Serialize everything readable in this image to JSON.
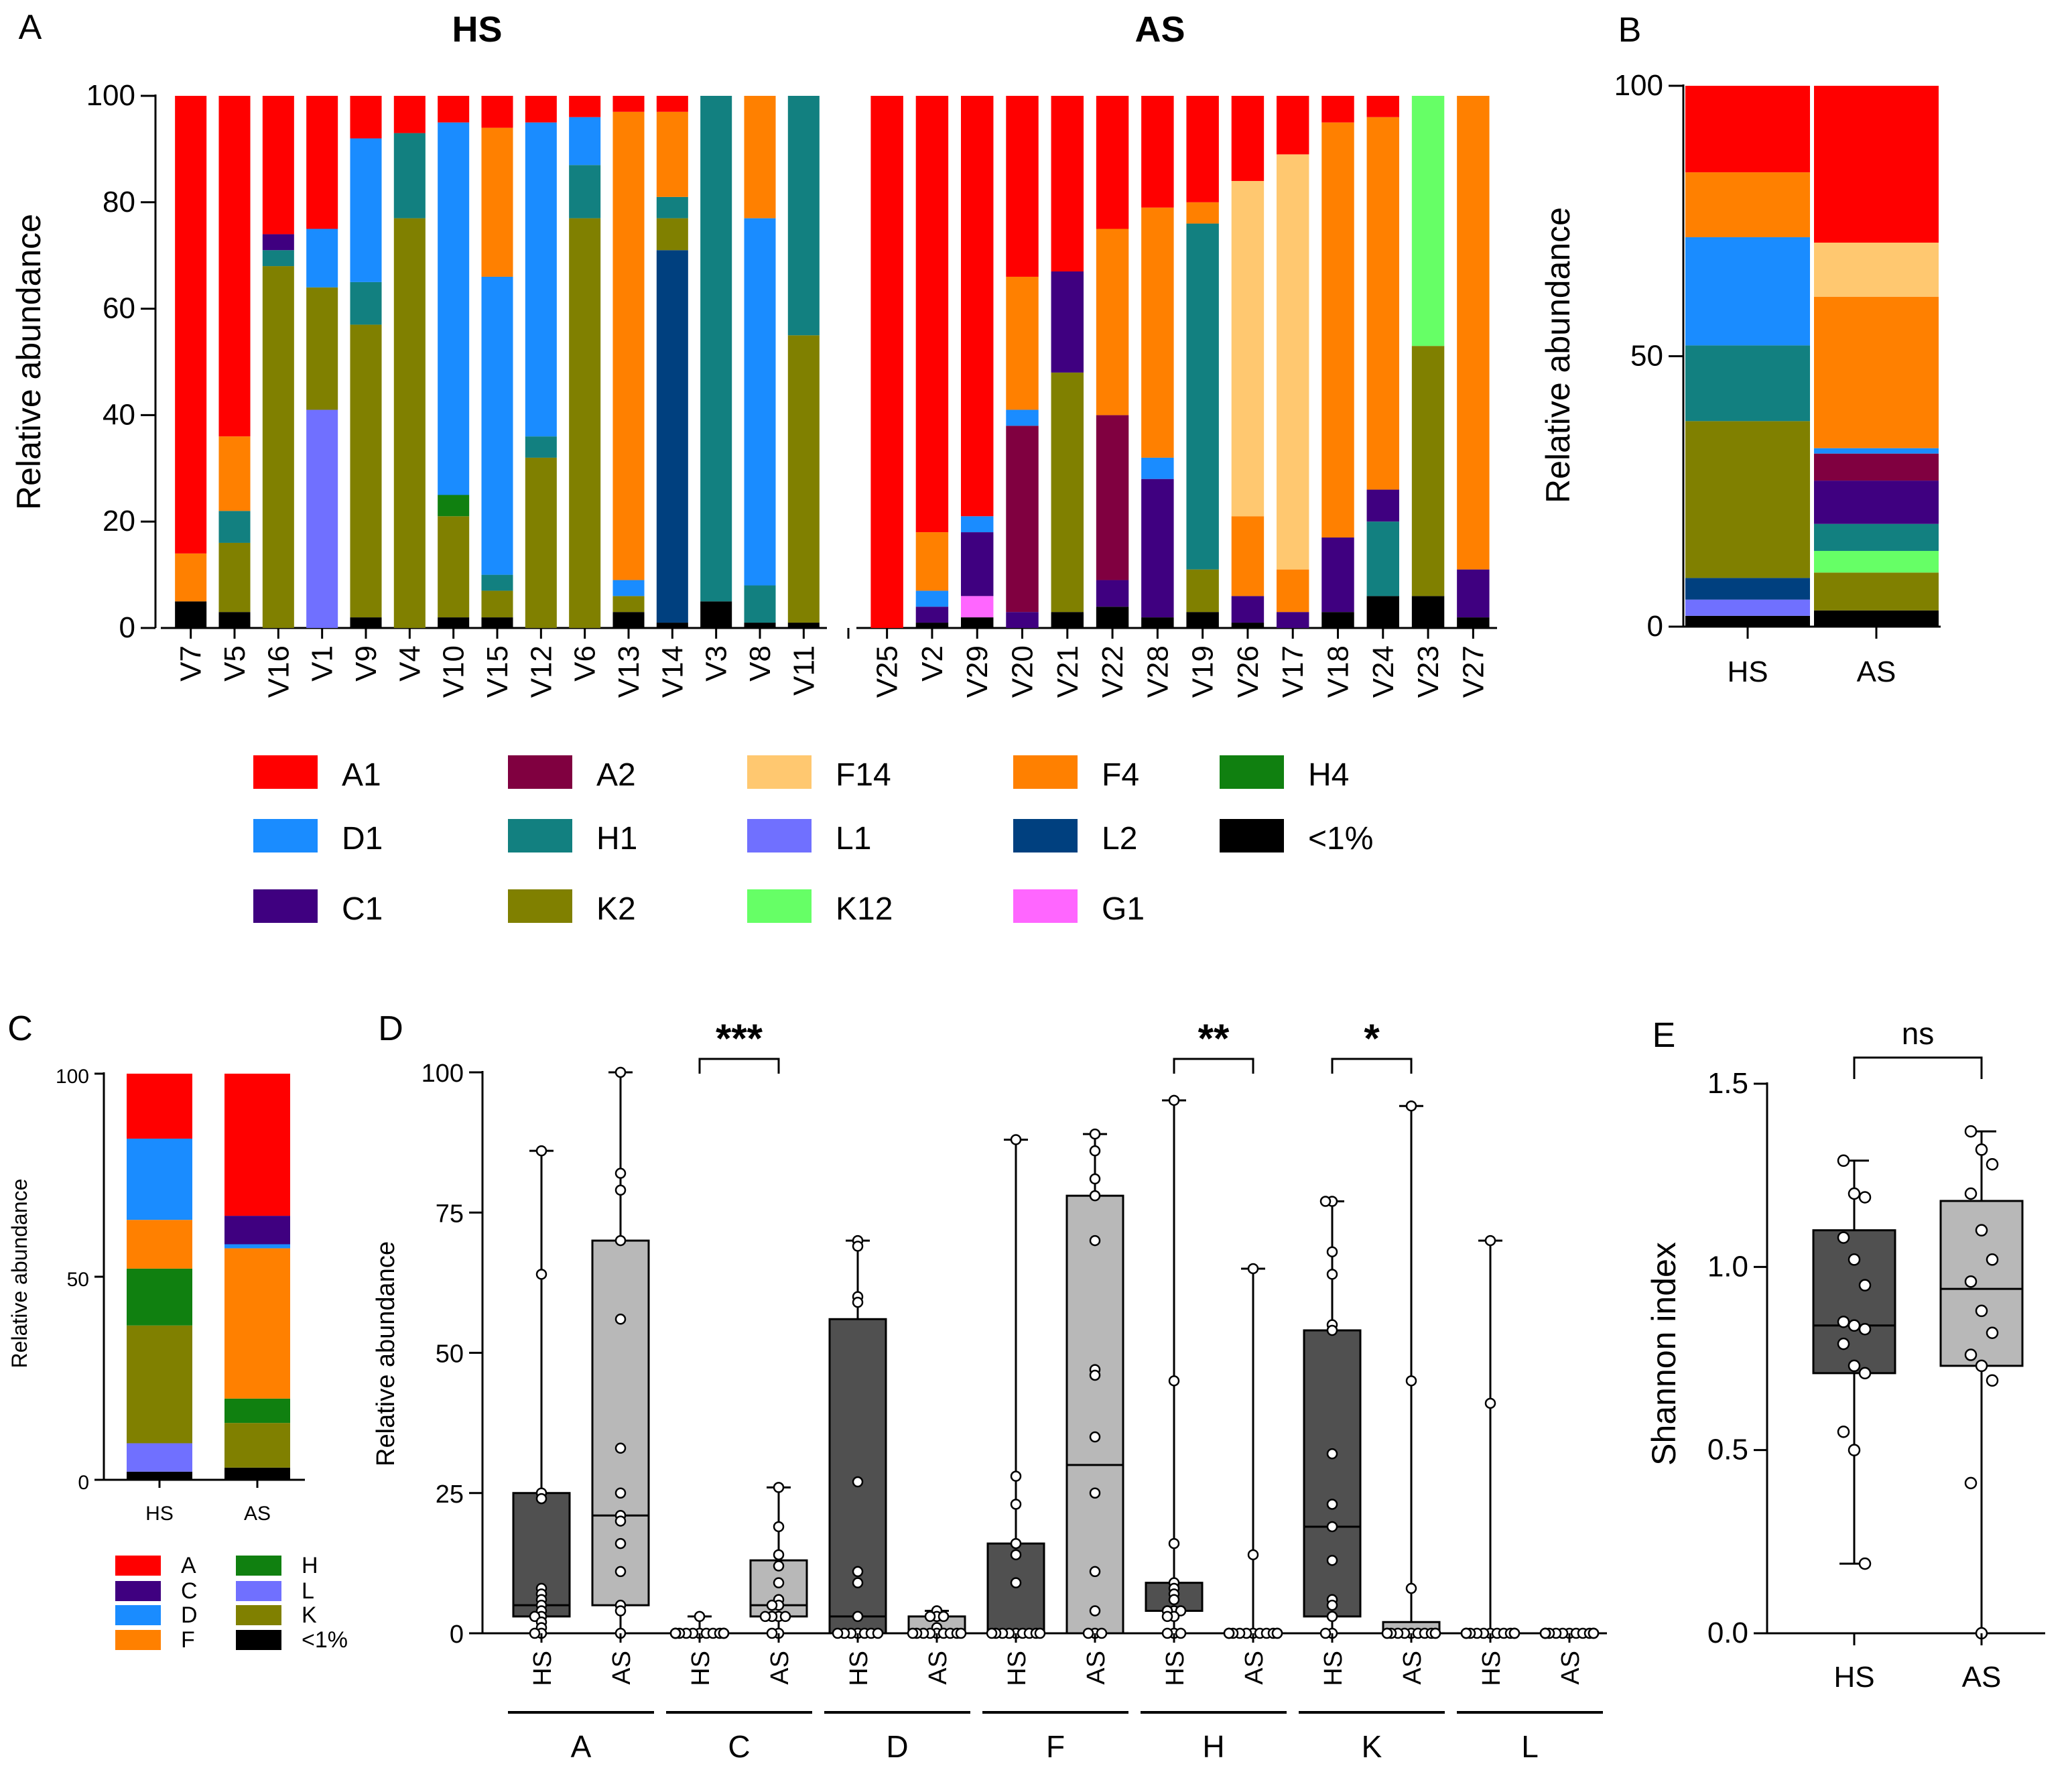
{
  "figure": {
    "panels": [
      "A",
      "B",
      "C",
      "D",
      "E"
    ],
    "groups": [
      "HS",
      "AS"
    ]
  },
  "colors": {
    "A1": "#ff0000",
    "A2": "#800040",
    "F14": "#ffc870",
    "F4": "#ff8000",
    "H4": "#108010",
    "D1": "#1a8cff",
    "H1": "#128080",
    "L1": "#7070ff",
    "L2": "#00407f",
    "<1%": "#000000",
    "C1": "#3f0080",
    "K2": "#808000",
    "K12": "#66ff66",
    "G1": "#ff66ff",
    "A": "#ff0000",
    "C": "#3f0080",
    "D": "#1a8cff",
    "F": "#ff8000",
    "H": "#108010",
    "L": "#7070ff",
    "K": "#808000",
    "box_HS": "#505050",
    "box_AS": "#b8b8b8"
  },
  "chart_data": [
    {
      "id": "A",
      "type": "bar",
      "stacked": true,
      "title": "",
      "group_titles": [
        "HS",
        "AS"
      ],
      "ylabel": "Relative abundance",
      "ylim": [
        0,
        100
      ],
      "yticks": [
        0,
        20,
        40,
        60,
        80,
        100
      ],
      "stack_order": [
        "<1%",
        "L1",
        "L2",
        "G1",
        "K2",
        "H4",
        "H1",
        "C1",
        "A2",
        "D1",
        "F4",
        "F14",
        "K12",
        "A1"
      ],
      "groups": [
        {
          "name": "HS",
          "samples": [
            {
              "label": "V7",
              "values": {
                "<1%": 5,
                "F4": 9,
                "A1": 86
              }
            },
            {
              "label": "V5",
              "values": {
                "<1%": 3,
                "K2": 13,
                "H1": 6,
                "F4": 14,
                "A1": 64
              }
            },
            {
              "label": "V16",
              "values": {
                "K2": 68,
                "H1": 3,
                "C1": 3,
                "A1": 26
              }
            },
            {
              "label": "V1",
              "values": {
                "L1": 41,
                "K2": 23,
                "D1": 11,
                "A1": 25
              }
            },
            {
              "label": "V9",
              "values": {
                "<1%": 2,
                "K2": 55,
                "H1": 8,
                "D1": 27,
                "A1": 8
              }
            },
            {
              "label": "V4",
              "values": {
                "K2": 77,
                "H1": 16,
                "A1": 7
              }
            },
            {
              "label": "V10",
              "values": {
                "<1%": 2,
                "K2": 19,
                "H4": 4,
                "D1": 70,
                "A1": 5
              }
            },
            {
              "label": "V15",
              "values": {
                "<1%": 2,
                "K2": 5,
                "H1": 3,
                "F4": 28,
                "D1": 56,
                "A1": 6
              }
            },
            {
              "label": "V12",
              "values": {
                "K2": 32,
                "H1": 4,
                "D1": 59,
                "A1": 5
              }
            },
            {
              "label": "V6",
              "values": {
                "K2": 77,
                "H1": 10,
                "D1": 9,
                "A1": 4
              }
            },
            {
              "label": "V13",
              "values": {
                "<1%": 3,
                "K2": 3,
                "F4": 88,
                "D1": 3,
                "A1": 3
              }
            },
            {
              "label": "V14",
              "values": {
                "<1%": 1,
                "L2": 70,
                "K2": 6,
                "H1": 4,
                "F4": 16,
                "A1": 3
              }
            },
            {
              "label": "V3",
              "values": {
                "<1%": 5,
                "H1": 95
              }
            },
            {
              "label": "V8",
              "values": {
                "<1%": 1,
                "H1": 7,
                "F4": 23,
                "D1": 69
              }
            },
            {
              "label": "V11",
              "values": {
                "<1%": 1,
                "K2": 54,
                "H1": 45
              }
            }
          ]
        },
        {
          "name": "AS",
          "samples": [
            {
              "label": "V25",
              "values": {
                "A1": 100
              }
            },
            {
              "label": "V2",
              "values": {
                "<1%": 1,
                "F4": 11,
                "D1": 3,
                "C1": 3,
                "A1": 82
              }
            },
            {
              "label": "V29",
              "values": {
                "<1%": 2,
                "G1": 4,
                "D1": 3,
                "C1": 12,
                "A1": 79
              }
            },
            {
              "label": "V20",
              "values": {
                "F4": 25,
                "D1": 3,
                "C1": 3,
                "A2": 35,
                "A1": 34
              }
            },
            {
              "label": "V21",
              "values": {
                "<1%": 3,
                "K2": 45,
                "C1": 19,
                "A1": 33
              }
            },
            {
              "label": "V22",
              "values": {
                "<1%": 4,
                "F4": 35,
                "C1": 5,
                "A2": 31,
                "A1": 25
              }
            },
            {
              "label": "V28",
              "values": {
                "<1%": 2,
                "F4": 47,
                "D1": 4,
                "C1": 26,
                "A1": 21
              }
            },
            {
              "label": "V19",
              "values": {
                "<1%": 3,
                "K2": 8,
                "H1": 65,
                "F4": 4,
                "A1": 20
              }
            },
            {
              "label": "V26",
              "values": {
                "<1%": 1,
                "F4": 15,
                "F14": 63,
                "C1": 5,
                "A1": 16
              }
            },
            {
              "label": "V17",
              "values": {
                "F4": 8,
                "F14": 78,
                "C1": 3,
                "A1": 11
              }
            },
            {
              "label": "V18",
              "values": {
                "<1%": 3,
                "F4": 78,
                "C1": 14,
                "A1": 5
              }
            },
            {
              "label": "V24",
              "values": {
                "<1%": 6,
                "H1": 14,
                "F4": 70,
                "C1": 6,
                "A1": 4
              }
            },
            {
              "label": "V23",
              "values": {
                "<1%": 6,
                "K2": 47,
                "K12": 47
              }
            },
            {
              "label": "V27",
              "values": {
                "<1%": 2,
                "F4": 89,
                "C1": 9
              }
            }
          ]
        }
      ],
      "legend": [
        "A1",
        "A2",
        "F14",
        "F4",
        "H4",
        "D1",
        "H1",
        "L1",
        "L2",
        "<1%",
        "C1",
        "K2",
        "K12",
        "G1"
      ]
    },
    {
      "id": "B",
      "type": "bar",
      "stacked": true,
      "ylabel": "Relative abundance",
      "ylim": [
        0,
        100
      ],
      "yticks": [
        0,
        50,
        100
      ],
      "categories": [
        "HS",
        "AS"
      ],
      "stack_order": [
        "<1%",
        "L1",
        "L2",
        "G1",
        "K2",
        "K12",
        "H1",
        "C1",
        "A2",
        "D1",
        "F4",
        "F14",
        "A1"
      ],
      "series_values": {
        "HS": {
          "<1%": 2,
          "L1": 3,
          "L2": 4,
          "K2": 29,
          "H1": 14,
          "F4": 12,
          "D1": 20,
          "A1": 16
        },
        "AS": {
          "<1%": 3,
          "K2": 7,
          "K12": 4,
          "H1": 5,
          "F4": 28,
          "F14": 10,
          "D1": 1,
          "C1": 8,
          "A2": 5,
          "A1": 29
        }
      }
    },
    {
      "id": "C",
      "type": "bar",
      "stacked": true,
      "ylabel": "Relative abundance",
      "ylim": [
        0,
        100
      ],
      "yticks": [
        0,
        50,
        100
      ],
      "categories": [
        "HS",
        "AS"
      ],
      "stack_order": [
        "<1%",
        "L",
        "K",
        "H",
        "F",
        "D",
        "C",
        "A"
      ],
      "series_values": {
        "HS": {
          "<1%": 2,
          "L": 7,
          "K": 29,
          "H": 14,
          "F": 12,
          "D": 20,
          "A": 16
        },
        "AS": {
          "<1%": 3,
          "K": 11,
          "H": 6,
          "F": 37,
          "D": 1,
          "C": 7,
          "A": 35
        }
      },
      "legend": [
        "A",
        "H",
        "C",
        "L",
        "D",
        "K",
        "F",
        "<1%"
      ]
    },
    {
      "id": "D",
      "type": "box",
      "ylabel": "Relative abundance",
      "ylim": [
        0,
        100
      ],
      "yticks": [
        0,
        25,
        50,
        75,
        100
      ],
      "families": [
        "A",
        "C",
        "D",
        "F",
        "H",
        "K",
        "L"
      ],
      "groups": [
        "HS",
        "AS"
      ],
      "boxes": [
        {
          "family": "A",
          "group": "HS",
          "min": 0,
          "q1": 3,
          "median": 5,
          "q3": 25,
          "max": 86,
          "points": [
            86,
            64,
            25,
            24,
            8,
            7,
            6,
            5,
            4,
            3,
            3,
            2,
            1,
            0,
            0
          ]
        },
        {
          "family": "A",
          "group": "AS",
          "min": 0,
          "q1": 5,
          "median": 21,
          "q3": 70,
          "max": 100,
          "points": [
            100,
            82,
            79,
            70,
            56,
            33,
            25,
            21,
            20,
            16,
            11,
            5,
            4,
            0
          ]
        },
        {
          "family": "C",
          "group": "HS",
          "min": 0,
          "q1": 0,
          "median": 0,
          "q3": 0,
          "max": 3,
          "points": [
            3,
            0,
            0,
            0,
            0,
            0,
            0,
            0,
            0,
            0,
            0,
            0,
            0,
            0,
            0
          ]
        },
        {
          "family": "C",
          "group": "AS",
          "min": 0,
          "q1": 3,
          "median": 5,
          "q3": 13,
          "max": 26,
          "points": [
            26,
            19,
            14,
            12,
            9,
            6,
            5,
            5,
            3,
            3,
            3,
            3,
            0,
            0
          ]
        },
        {
          "family": "D",
          "group": "HS",
          "min": 0,
          "q1": 0,
          "median": 3,
          "q3": 56,
          "max": 70,
          "points": [
            70,
            69,
            60,
            59,
            27,
            11,
            9,
            3,
            0,
            0,
            0,
            0,
            0,
            0,
            0
          ]
        },
        {
          "family": "D",
          "group": "AS",
          "min": 0,
          "q1": 0,
          "median": 0,
          "q3": 3,
          "max": 4,
          "points": [
            4,
            3,
            3,
            3,
            1,
            0,
            0,
            0,
            0,
            0,
            0,
            0,
            0,
            0
          ]
        },
        {
          "family": "F",
          "group": "HS",
          "min": 0,
          "q1": 0,
          "median": 0,
          "q3": 16,
          "max": 88,
          "points": [
            88,
            28,
            23,
            16,
            14,
            9,
            0,
            0,
            0,
            0,
            0,
            0,
            0,
            0,
            0
          ]
        },
        {
          "family": "F",
          "group": "AS",
          "min": 0,
          "q1": 0,
          "median": 30,
          "q3": 78,
          "max": 89,
          "points": [
            89,
            86,
            81,
            78,
            70,
            47,
            46,
            35,
            25,
            11,
            4,
            0,
            0,
            0
          ]
        },
        {
          "family": "H",
          "group": "HS",
          "min": 0,
          "q1": 4,
          "median": 4,
          "q3": 9,
          "max": 95,
          "points": [
            95,
            45,
            16,
            9,
            8,
            7,
            6,
            4,
            4,
            4,
            3,
            3,
            0,
            0,
            0
          ]
        },
        {
          "family": "H",
          "group": "AS",
          "min": 0,
          "q1": 0,
          "median": 0,
          "q3": 0,
          "max": 65,
          "points": [
            65,
            14,
            0,
            0,
            0,
            0,
            0,
            0,
            0,
            0,
            0,
            0,
            0,
            0
          ]
        },
        {
          "family": "K",
          "group": "HS",
          "min": 0,
          "q1": 3,
          "median": 19,
          "q3": 54,
          "max": 77,
          "points": [
            77,
            77,
            68,
            64,
            55,
            54,
            32,
            23,
            19,
            13,
            6,
            5,
            3,
            0,
            0
          ]
        },
        {
          "family": "K",
          "group": "AS",
          "min": 0,
          "q1": 0,
          "median": 0,
          "q3": 2,
          "max": 94,
          "points": [
            94,
            45,
            8,
            0,
            0,
            0,
            0,
            0,
            0,
            0,
            0,
            0,
            0,
            0
          ]
        },
        {
          "family": "L",
          "group": "HS",
          "min": 0,
          "q1": 0,
          "median": 0,
          "q3": 0,
          "max": 70,
          "points": [
            70,
            41,
            0,
            0,
            0,
            0,
            0,
            0,
            0,
            0,
            0,
            0,
            0,
            0,
            0
          ]
        },
        {
          "family": "L",
          "group": "AS",
          "min": 0,
          "q1": 0,
          "median": 0,
          "q3": 0,
          "max": 0,
          "points": [
            0,
            0,
            0,
            0,
            0,
            0,
            0,
            0,
            0,
            0,
            0,
            0,
            0,
            0
          ]
        }
      ],
      "significance": [
        {
          "family": "C",
          "label": "***"
        },
        {
          "family": "H",
          "label": "**"
        },
        {
          "family": "K",
          "label": "*"
        }
      ]
    },
    {
      "id": "E",
      "type": "box",
      "ylabel": "Shannon index",
      "ylim": [
        0,
        1.5
      ],
      "yticks": [
        "0.0",
        "0.5",
        "1.0",
        "1.5"
      ],
      "categories": [
        "HS",
        "AS"
      ],
      "boxes": [
        {
          "group": "HS",
          "min": 0.19,
          "q1": 0.71,
          "median": 0.84,
          "q3": 1.1,
          "max": 1.29,
          "points": [
            1.29,
            1.2,
            1.19,
            1.08,
            1.02,
            0.95,
            0.85,
            0.84,
            0.83,
            0.79,
            0.73,
            0.71,
            0.55,
            0.5,
            0.19
          ]
        },
        {
          "group": "AS",
          "min": 0.0,
          "q1": 0.73,
          "median": 0.94,
          "q3": 1.18,
          "max": 1.37,
          "points": [
            1.37,
            1.32,
            1.28,
            1.2,
            1.1,
            1.02,
            0.96,
            0.88,
            0.82,
            0.76,
            0.73,
            0.69,
            0.41,
            0.0
          ]
        }
      ],
      "significance": [
        {
          "label": "ns"
        }
      ]
    }
  ]
}
